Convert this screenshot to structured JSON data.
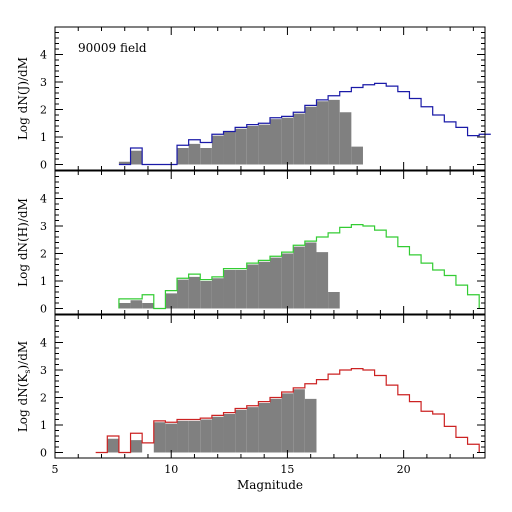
{
  "chart_data": [
    {
      "type": "histogram",
      "annotation": "90009 field",
      "ylabel": "Log dN(J)/dM",
      "xlim": [
        5,
        23.5
      ],
      "ylim": [
        -0.2,
        5
      ],
      "yticks": [
        "0",
        "1",
        "2",
        "3",
        "4"
      ],
      "bin_width": 0.5,
      "series": [
        {
          "kind": "filled",
          "color": "#808080",
          "bins": [
            {
              "x": 8.0,
              "y": 0.1
            },
            {
              "x": 8.5,
              "y": 0.5
            },
            {
              "x": 9.0,
              "y": 0.0
            },
            {
              "x": 9.5,
              "y": 0.0
            },
            {
              "x": 10.0,
              "y": 0.0
            },
            {
              "x": 10.5,
              "y": 0.6
            },
            {
              "x": 11.0,
              "y": 0.75
            },
            {
              "x": 11.5,
              "y": 0.6
            },
            {
              "x": 12.0,
              "y": 1.05
            },
            {
              "x": 12.5,
              "y": 1.2
            },
            {
              "x": 13.0,
              "y": 1.3
            },
            {
              "x": 13.5,
              "y": 1.4
            },
            {
              "x": 14.0,
              "y": 1.45
            },
            {
              "x": 14.5,
              "y": 1.65
            },
            {
              "x": 15.0,
              "y": 1.7
            },
            {
              "x": 15.5,
              "y": 1.85
            },
            {
              "x": 16.0,
              "y": 2.1
            },
            {
              "x": 16.5,
              "y": 2.3
            },
            {
              "x": 17.0,
              "y": 2.35
            },
            {
              "x": 17.5,
              "y": 1.9
            },
            {
              "x": 18.0,
              "y": 0.65
            }
          ]
        },
        {
          "kind": "outline",
          "color": "#1a1aa8",
          "bins": [
            {
              "x": 8.0,
              "y": 0.0
            },
            {
              "x": 8.5,
              "y": 0.6
            },
            {
              "x": 9.0,
              "y": 0.0
            },
            {
              "x": 9.5,
              "y": 0.0
            },
            {
              "x": 10.0,
              "y": 0.0
            },
            {
              "x": 10.5,
              "y": 0.7
            },
            {
              "x": 11.0,
              "y": 0.9
            },
            {
              "x": 11.5,
              "y": 0.8
            },
            {
              "x": 12.0,
              "y": 1.1
            },
            {
              "x": 12.5,
              "y": 1.2
            },
            {
              "x": 13.0,
              "y": 1.35
            },
            {
              "x": 13.5,
              "y": 1.45
            },
            {
              "x": 14.0,
              "y": 1.5
            },
            {
              "x": 14.5,
              "y": 1.7
            },
            {
              "x": 15.0,
              "y": 1.75
            },
            {
              "x": 15.5,
              "y": 1.9
            },
            {
              "x": 16.0,
              "y": 2.15
            },
            {
              "x": 16.5,
              "y": 2.35
            },
            {
              "x": 17.0,
              "y": 2.5
            },
            {
              "x": 17.5,
              "y": 2.65
            },
            {
              "x": 18.0,
              "y": 2.8
            },
            {
              "x": 18.5,
              "y": 2.9
            },
            {
              "x": 19.0,
              "y": 2.95
            },
            {
              "x": 19.5,
              "y": 2.85
            },
            {
              "x": 20.0,
              "y": 2.65
            },
            {
              "x": 20.5,
              "y": 2.4
            },
            {
              "x": 21.0,
              "y": 2.1
            },
            {
              "x": 21.5,
              "y": 1.8
            },
            {
              "x": 22.0,
              "y": 1.55
            },
            {
              "x": 22.5,
              "y": 1.35
            },
            {
              "x": 23.0,
              "y": 1.05
            },
            {
              "x": 23.5,
              "y": 1.1
            }
          ]
        }
      ]
    },
    {
      "type": "histogram",
      "ylabel": "Log dN(H)/dM",
      "xlim": [
        5,
        23.5
      ],
      "ylim": [
        -0.2,
        5
      ],
      "yticks": [
        "0",
        "1",
        "2",
        "3",
        "4"
      ],
      "bin_width": 0.5,
      "series": [
        {
          "kind": "filled",
          "color": "#808080",
          "bins": [
            {
              "x": 8.0,
              "y": 0.2
            },
            {
              "x": 8.5,
              "y": 0.3
            },
            {
              "x": 9.0,
              "y": 0.2
            },
            {
              "x": 9.5,
              "y": 0.0
            },
            {
              "x": 10.0,
              "y": 0.55
            },
            {
              "x": 10.5,
              "y": 1.05
            },
            {
              "x": 11.0,
              "y": 1.15
            },
            {
              "x": 11.5,
              "y": 1.0
            },
            {
              "x": 12.0,
              "y": 1.1
            },
            {
              "x": 12.5,
              "y": 1.4
            },
            {
              "x": 13.0,
              "y": 1.4
            },
            {
              "x": 13.5,
              "y": 1.6
            },
            {
              "x": 14.0,
              "y": 1.7
            },
            {
              "x": 14.5,
              "y": 1.85
            },
            {
              "x": 15.0,
              "y": 2.0
            },
            {
              "x": 15.5,
              "y": 2.25
            },
            {
              "x": 16.0,
              "y": 2.4
            },
            {
              "x": 16.5,
              "y": 2.05
            },
            {
              "x": 17.0,
              "y": 0.6
            }
          ]
        },
        {
          "kind": "outline",
          "color": "#33cc33",
          "bins": [
            {
              "x": 8.0,
              "y": 0.35
            },
            {
              "x": 8.5,
              "y": 0.35
            },
            {
              "x": 9.0,
              "y": 0.5
            },
            {
              "x": 9.5,
              "y": 0.0
            },
            {
              "x": 10.0,
              "y": 0.65
            },
            {
              "x": 10.5,
              "y": 1.1
            },
            {
              "x": 11.0,
              "y": 1.25
            },
            {
              "x": 11.5,
              "y": 1.05
            },
            {
              "x": 12.0,
              "y": 1.15
            },
            {
              "x": 12.5,
              "y": 1.45
            },
            {
              "x": 13.0,
              "y": 1.45
            },
            {
              "x": 13.5,
              "y": 1.65
            },
            {
              "x": 14.0,
              "y": 1.75
            },
            {
              "x": 14.5,
              "y": 1.9
            },
            {
              "x": 15.0,
              "y": 2.05
            },
            {
              "x": 15.5,
              "y": 2.3
            },
            {
              "x": 16.0,
              "y": 2.45
            },
            {
              "x": 16.5,
              "y": 2.6
            },
            {
              "x": 17.0,
              "y": 2.75
            },
            {
              "x": 17.5,
              "y": 2.95
            },
            {
              "x": 18.0,
              "y": 3.05
            },
            {
              "x": 18.5,
              "y": 3.0
            },
            {
              "x": 19.0,
              "y": 2.85
            },
            {
              "x": 19.5,
              "y": 2.6
            },
            {
              "x": 20.0,
              "y": 2.25
            },
            {
              "x": 20.5,
              "y": 1.95
            },
            {
              "x": 21.0,
              "y": 1.65
            },
            {
              "x": 21.5,
              "y": 1.4
            },
            {
              "x": 22.0,
              "y": 1.2
            },
            {
              "x": 22.5,
              "y": 0.85
            },
            {
              "x": 23.0,
              "y": 0.5
            }
          ]
        }
      ]
    },
    {
      "type": "histogram",
      "ylabel": "Log dN(K",
      "ylabel_sub": "s",
      "ylabel_tail": ")/dM",
      "xlabel": "Magnitude",
      "xlim": [
        5,
        23.5
      ],
      "ylim": [
        -0.2,
        5
      ],
      "yticks": [
        "0",
        "1",
        "2",
        "3",
        "4"
      ],
      "xticks": [
        "5",
        "10",
        "15",
        "20"
      ],
      "bin_width": 0.5,
      "series": [
        {
          "kind": "filled",
          "color": "#808080",
          "bins": [
            {
              "x": 7.0,
              "y": 0.0
            },
            {
              "x": 7.5,
              "y": 0.5
            },
            {
              "x": 8.0,
              "y": 0.0
            },
            {
              "x": 8.5,
              "y": 0.45
            },
            {
              "x": 9.0,
              "y": 0.0
            },
            {
              "x": 9.5,
              "y": 1.1
            },
            {
              "x": 10.0,
              "y": 1.05
            },
            {
              "x": 10.5,
              "y": 1.15
            },
            {
              "x": 11.0,
              "y": 1.15
            },
            {
              "x": 11.5,
              "y": 1.2
            },
            {
              "x": 12.0,
              "y": 1.3
            },
            {
              "x": 12.5,
              "y": 1.4
            },
            {
              "x": 13.0,
              "y": 1.55
            },
            {
              "x": 13.5,
              "y": 1.65
            },
            {
              "x": 14.0,
              "y": 1.8
            },
            {
              "x": 14.5,
              "y": 1.95
            },
            {
              "x": 15.0,
              "y": 2.15
            },
            {
              "x": 15.5,
              "y": 2.3
            },
            {
              "x": 16.0,
              "y": 1.95
            }
          ]
        },
        {
          "kind": "outline",
          "color": "#cc2222",
          "bins": [
            {
              "x": 7.0,
              "y": 0.0
            },
            {
              "x": 7.5,
              "y": 0.6
            },
            {
              "x": 8.0,
              "y": 0.0
            },
            {
              "x": 8.5,
              "y": 0.7
            },
            {
              "x": 9.0,
              "y": 0.35
            },
            {
              "x": 9.5,
              "y": 1.15
            },
            {
              "x": 10.0,
              "y": 1.1
            },
            {
              "x": 10.5,
              "y": 1.2
            },
            {
              "x": 11.0,
              "y": 1.2
            },
            {
              "x": 11.5,
              "y": 1.25
            },
            {
              "x": 12.0,
              "y": 1.35
            },
            {
              "x": 12.5,
              "y": 1.45
            },
            {
              "x": 13.0,
              "y": 1.6
            },
            {
              "x": 13.5,
              "y": 1.7
            },
            {
              "x": 14.0,
              "y": 1.85
            },
            {
              "x": 14.5,
              "y": 2.0
            },
            {
              "x": 15.0,
              "y": 2.2
            },
            {
              "x": 15.5,
              "y": 2.35
            },
            {
              "x": 16.0,
              "y": 2.5
            },
            {
              "x": 16.5,
              "y": 2.65
            },
            {
              "x": 17.0,
              "y": 2.85
            },
            {
              "x": 17.5,
              "y": 3.0
            },
            {
              "x": 18.0,
              "y": 3.05
            },
            {
              "x": 18.5,
              "y": 3.0
            },
            {
              "x": 19.0,
              "y": 2.8
            },
            {
              "x": 19.5,
              "y": 2.45
            },
            {
              "x": 20.0,
              "y": 2.1
            },
            {
              "x": 20.5,
              "y": 1.85
            },
            {
              "x": 21.0,
              "y": 1.5
            },
            {
              "x": 21.5,
              "y": 1.4
            },
            {
              "x": 22.0,
              "y": 0.95
            },
            {
              "x": 22.5,
              "y": 0.55
            },
            {
              "x": 23.0,
              "y": 0.3
            }
          ]
        }
      ]
    }
  ]
}
